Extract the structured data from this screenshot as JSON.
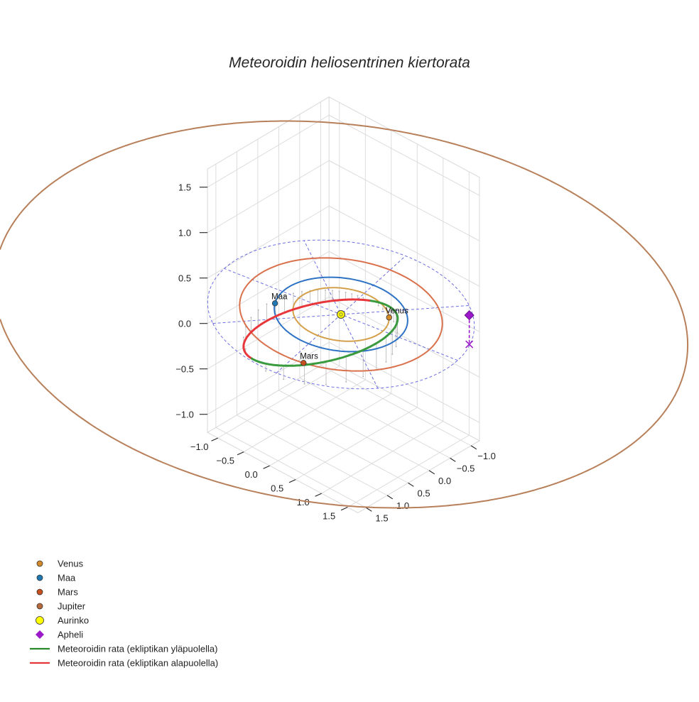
{
  "chart_data": {
    "type": "line",
    "projection": "3d",
    "title": "Meteoroidin heliosentrinen kiertorata",
    "xlabel": "",
    "ylabel": "",
    "zlabel": "",
    "grid": true,
    "legend_placement": "lower-left",
    "x_ticks": [
      "−1.0",
      "−0.5",
      "0.0",
      "0.5",
      "1.0",
      "1.5"
    ],
    "y_ticks": [
      "−1.0",
      "−0.5",
      "0.0",
      "0.5",
      "1.0",
      "1.5"
    ],
    "z_ticks": [
      "−1.0",
      "−0.5",
      "0.0",
      "0.5",
      "1.0",
      "1.5"
    ],
    "xlim": [
      -1.2,
      1.7
    ],
    "ylim": [
      -1.2,
      1.7
    ],
    "zlim": [
      -1.2,
      1.7
    ],
    "orbits": [
      {
        "name": "Venus",
        "radius_au": 0.72,
        "color": "#d4a04c"
      },
      {
        "name": "Maa",
        "radius_au": 1.0,
        "color": "#2e72c4"
      },
      {
        "name": "Mars",
        "radius_au": 1.52,
        "color": "#d9714c"
      }
    ],
    "jupiter_orbit_radius_au": 5.2,
    "jupiter_orbit_color": "#b8805a",
    "reference_circle_radius_au": 2.0,
    "reference_color": "#5555dd",
    "bodies": [
      {
        "name": "Venus",
        "label": "Venus",
        "x": -0.48,
        "y": 0.54,
        "z": 0,
        "color": "#d48a2a"
      },
      {
        "name": "Maa",
        "label": "Maa",
        "x": 0.51,
        "y": -0.86,
        "z": 0,
        "color": "#1f77b4"
      },
      {
        "name": "Mars",
        "label": "Mars",
        "x": 1.45,
        "y": 0.45,
        "z": 0,
        "color": "#c8501e"
      },
      {
        "name": "Aurinko",
        "label": "",
        "x": 0,
        "y": 0,
        "z": 0,
        "color": "#ffff00"
      }
    ],
    "meteoroid_orbit": {
      "a_au": 1.35,
      "e": 0.55,
      "inclination_deg": 12,
      "ascending_node_deg": 30,
      "arg_perihelion_deg": 200,
      "above_color": "#3a9a3e",
      "below_color": "#e8373a"
    },
    "aphelion": {
      "x": -1.28,
      "y": 1.44,
      "z": 0.08,
      "color": "#9b19c8"
    },
    "legend": [
      {
        "label": "Venus",
        "marker": "circle",
        "color": "#d48a2a"
      },
      {
        "label": "Maa",
        "marker": "circle",
        "color": "#1f77b4"
      },
      {
        "label": "Mars",
        "marker": "circle",
        "color": "#c8501e"
      },
      {
        "label": "Jupiter",
        "marker": "circle",
        "color": "#b86a3c"
      },
      {
        "label": "Aurinko",
        "marker": "circle",
        "color": "#ffff00"
      },
      {
        "label": "Apheli",
        "marker": "diamond",
        "color": "#9b19c8"
      },
      {
        "label": "Meteoroidin rata (ekliptikan yläpuolella)",
        "marker": "line",
        "color": "#2a8a2a"
      },
      {
        "label": "Meteoroidin rata (ekliptikan alapuolella)",
        "marker": "line",
        "color": "#e8373a"
      }
    ]
  }
}
